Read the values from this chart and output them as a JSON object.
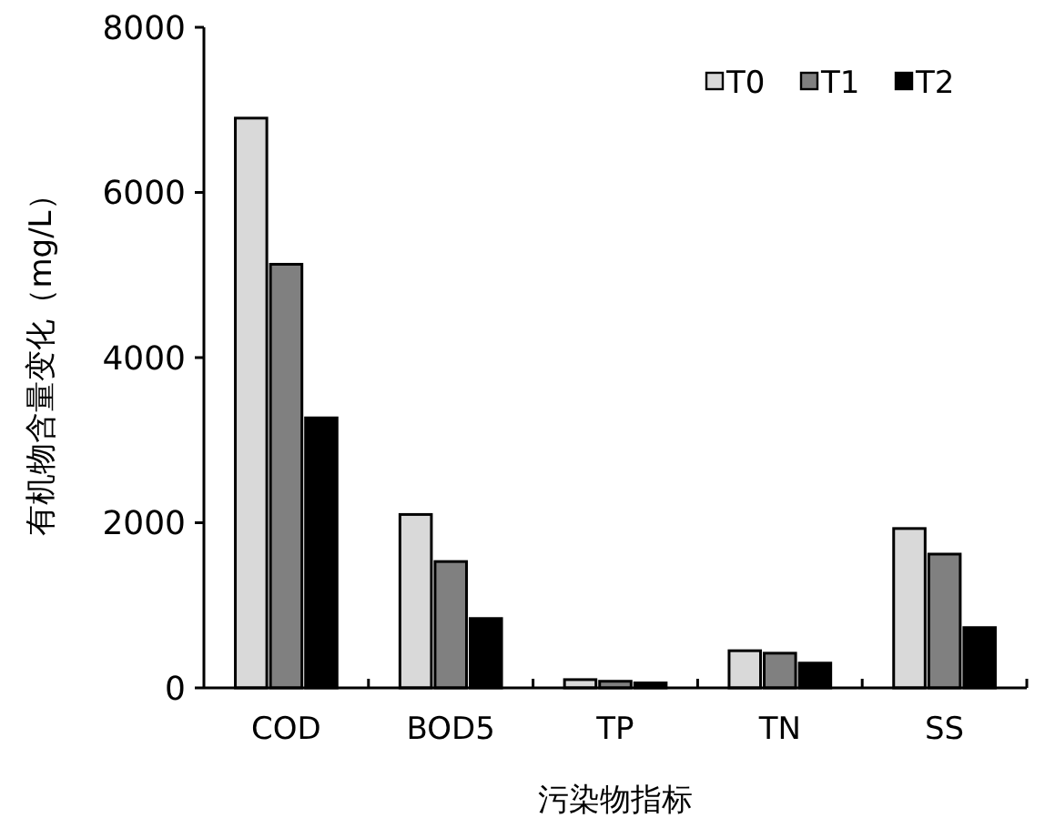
{
  "chart_data": {
    "type": "bar",
    "xlabel": "污染物指标",
    "ylabel": "有机物含量变化（mg/L）",
    "categories": [
      "COD",
      "BOD5",
      "TP",
      "TN",
      "SS"
    ],
    "series": [
      {
        "name": "T0",
        "color": "#d9d9d9",
        "values": [
          6900,
          2100,
          100,
          450,
          1930
        ]
      },
      {
        "name": "T1",
        "color": "#808080",
        "values": [
          5130,
          1530,
          80,
          420,
          1620
        ]
      },
      {
        "name": "T2",
        "color": "#000000",
        "values": [
          3270,
          840,
          60,
          300,
          730
        ]
      }
    ],
    "ylim": [
      0,
      8000
    ],
    "yticks": [
      0,
      2000,
      4000,
      6000,
      8000
    ],
    "legend": "top right"
  }
}
